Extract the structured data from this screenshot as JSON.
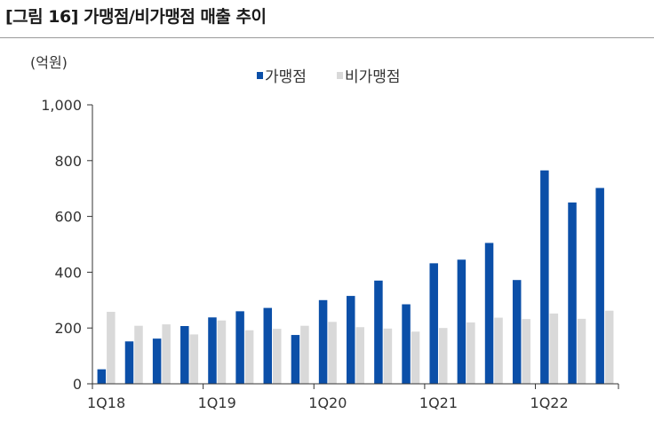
{
  "title": "[그림 16] 가맹점/비가맹점 매출 추이",
  "colors": {
    "franchise": "#0b4fa8",
    "non_franchise": "#d9d9d9",
    "axis": "#333333"
  },
  "chart_data": {
    "type": "bar",
    "title": "[그림 16] 가맹점/비가맹점 매출 추이",
    "ylabel": "(억원)",
    "xlabel": "",
    "ylim": [
      0,
      1000
    ],
    "yticks": [
      "0",
      "200",
      "400",
      "600",
      "800",
      "1,000"
    ],
    "ytick_values": [
      0,
      200,
      400,
      600,
      800,
      1000
    ],
    "grid": false,
    "legend": "top",
    "categories": [
      "1Q18",
      "2Q18",
      "3Q18",
      "4Q18",
      "1Q19",
      "2Q19",
      "3Q19",
      "4Q19",
      "1Q20",
      "2Q20",
      "3Q20",
      "4Q20",
      "1Q21",
      "2Q21",
      "3Q21",
      "4Q21",
      "1Q22",
      "2Q22",
      "3Q22"
    ],
    "xtick_labels": [
      "1Q18",
      "1Q19",
      "1Q20",
      "1Q21",
      "1Q22"
    ],
    "xtick_positions": [
      0,
      4,
      8,
      12,
      16
    ],
    "series": [
      {
        "name": "가맹점",
        "color": "#0b4fa8",
        "values": [
          52,
          152,
          162,
          207,
          238,
          260,
          272,
          175,
          300,
          315,
          370,
          285,
          432,
          445,
          505,
          372,
          765,
          650,
          702
        ]
      },
      {
        "name": "비가맹점",
        "color": "#d9d9d9",
        "values": [
          258,
          208,
          213,
          177,
          227,
          192,
          197,
          208,
          222,
          203,
          198,
          187,
          200,
          220,
          237,
          232,
          252,
          233,
          262
        ]
      }
    ]
  }
}
